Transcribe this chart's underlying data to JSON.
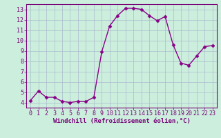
{
  "x": [
    0,
    1,
    2,
    3,
    4,
    5,
    6,
    7,
    8,
    9,
    10,
    11,
    12,
    13,
    14,
    15,
    16,
    17,
    18,
    19,
    20,
    21,
    22,
    23
  ],
  "y": [
    4.2,
    5.1,
    4.5,
    4.5,
    4.1,
    4.0,
    4.1,
    4.1,
    4.5,
    8.9,
    11.4,
    12.4,
    13.1,
    13.1,
    13.0,
    12.4,
    11.9,
    12.3,
    9.6,
    7.8,
    7.6,
    8.5,
    9.4,
    9.5
  ],
  "line_color": "#880088",
  "marker": "D",
  "marker_size": 2.5,
  "xlabel": "Windchill (Refroidissement éolien,°C)",
  "xlabel_fontsize": 6.5,
  "bg_color": "#cceedd",
  "grid_color": "#aabbcc",
  "ylim": [
    3.5,
    13.5
  ],
  "xlim": [
    -0.5,
    23.5
  ],
  "yticks": [
    4,
    5,
    6,
    7,
    8,
    9,
    10,
    11,
    12,
    13
  ],
  "xticks": [
    0,
    1,
    2,
    3,
    4,
    5,
    6,
    7,
    8,
    9,
    10,
    11,
    12,
    13,
    14,
    15,
    16,
    17,
    18,
    19,
    20,
    21,
    22,
    23
  ],
  "tick_fontsize": 6.0,
  "axis_color": "#770077",
  "spine_color": "#770077",
  "linewidth": 1.0
}
